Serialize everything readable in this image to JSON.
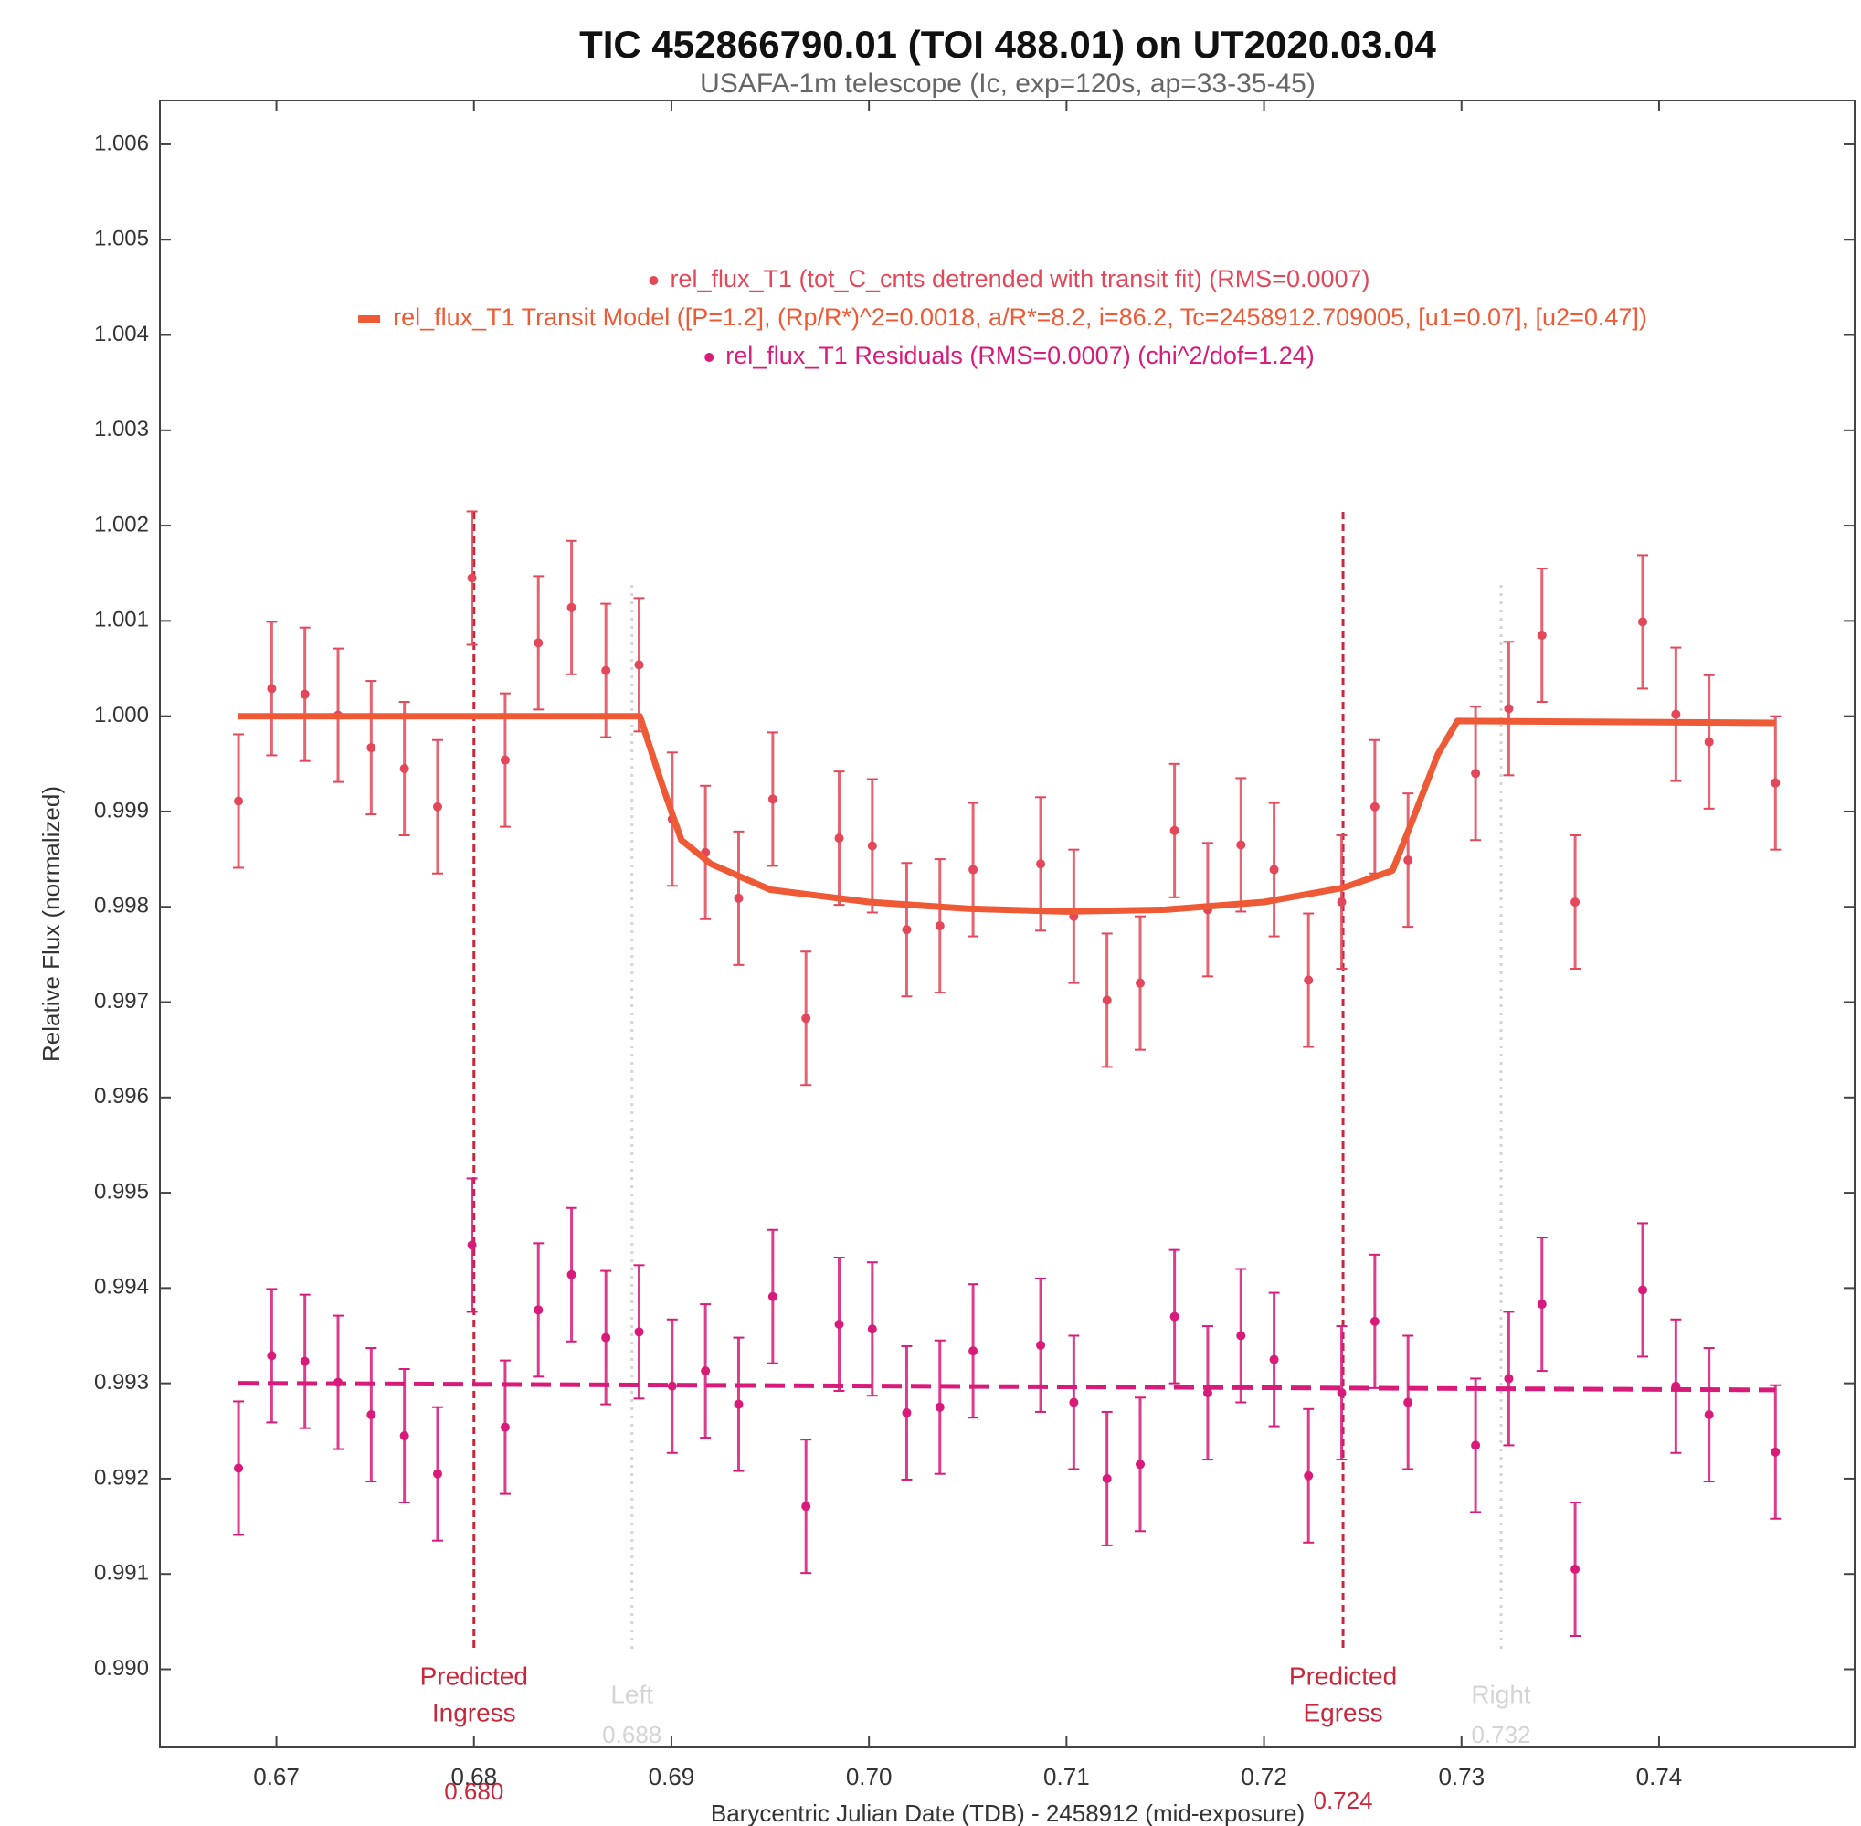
{
  "chart_data": {
    "type": "scatter",
    "title": "TIC 452866790.01 (TOI 488.01)  on UT2020.03.04",
    "subtitle": "USAFA-1m telescope (Ic, exp=120s, ap=33-35-45)",
    "x_label": "Barycentric Julian Date (TDB) - 2458912 (mid-exposure)",
    "y_label": "Relative Flux (normalized)",
    "xlim": [
      0.6641,
      0.7499
    ],
    "ylim": [
      0.98918,
      1.00646
    ],
    "xticks": [
      0.67,
      0.68,
      0.69,
      {
        "value": 0.7,
        "label": "0.70"
      },
      0.71,
      0.72,
      0.73,
      0.74
    ],
    "yticks": [
      {
        "value": 0.99,
        "label": "0.990"
      },
      0.991,
      0.992,
      0.993,
      0.994,
      0.995,
      0.996,
      0.997,
      0.998,
      0.999,
      {
        "value": 1.0,
        "label": "1.000"
      },
      1.001,
      1.002,
      1.003,
      1.004,
      1.005,
      1.006
    ],
    "grid": false,
    "legend": "top",
    "series": [
      {
        "name": "rel_flux_T1 (tot_C_cnts detrended with transit fit) (RMS=0.0007)",
        "type": "errorbar",
        "color": "#e2485a",
        "x": [
          0.66808,
          0.66976,
          0.67144,
          0.67312,
          0.6748,
          0.67648,
          0.67816,
          0.6799,
          0.68158,
          0.68326,
          0.68494,
          0.68668,
          0.68836,
          0.69004,
          0.69172,
          0.6934,
          0.69513,
          0.69681,
          0.69849,
          0.70017,
          0.70191,
          0.70359,
          0.70527,
          0.70869,
          0.71037,
          0.71205,
          0.71373,
          0.71547,
          0.71715,
          0.71883,
          0.72051,
          0.72225,
          0.72393,
          0.72561,
          0.72729,
          0.73071,
          0.73239,
          0.73407,
          0.73575,
          0.73917,
          0.74085,
          0.74253,
          0.74589
        ],
        "values": [
          0.99911,
          1.00029,
          1.00023,
          1.00001,
          0.99967,
          0.99945,
          0.99905,
          1.00145,
          0.99954,
          1.00077,
          1.00114,
          1.00048,
          1.00054,
          0.99892,
          0.99857,
          0.99809,
          0.99913,
          0.99683,
          0.99872,
          0.99864,
          0.99776,
          0.9978,
          0.99839,
          0.99845,
          0.9979,
          0.99702,
          0.9972,
          0.9988,
          0.99797,
          0.99865,
          0.99839,
          0.99723,
          0.99805,
          0.99905,
          0.99849,
          0.9994,
          1.00008,
          1.00085,
          0.99805,
          1.00099,
          1.00002,
          0.99973,
          0.9993
        ],
        "errors": [
          0.0007,
          0.0007,
          0.0007,
          0.0007,
          0.0007,
          0.0007,
          0.0007,
          0.0007,
          0.0007,
          0.0007,
          0.0007,
          0.0007,
          0.0007,
          0.0007,
          0.0007,
          0.0007,
          0.0007,
          0.0007,
          0.0007,
          0.0007,
          0.0007,
          0.0007,
          0.0007,
          0.0007,
          0.0007,
          0.0007,
          0.0007,
          0.0007,
          0.0007,
          0.0007,
          0.0007,
          0.0007,
          0.0007,
          0.0007,
          0.0007,
          0.0007,
          0.0007,
          0.0007,
          0.0007,
          0.0007,
          0.0007,
          0.0007,
          0.0007
        ]
      },
      {
        "name": "rel_flux_T1 Transit Model ([P=1.2], (Rp/R*)^2=0.0018, a/R*=8.2, i=86.2, Tc=2458912.709005, [u1=0.07], [u2=0.47])",
        "type": "line",
        "color": "#ee5a35",
        "x": [
          0.66808,
          0.6884,
          0.6895,
          0.6905,
          0.692,
          0.695,
          0.7,
          0.705,
          0.71,
          0.715,
          0.72,
          0.724,
          0.7265,
          0.7275,
          0.7288,
          0.7298,
          0.74589
        ],
        "values": [
          1.0,
          1.0,
          0.9993,
          0.9987,
          0.99845,
          0.99818,
          0.99805,
          0.99798,
          0.99795,
          0.99797,
          0.99805,
          0.9982,
          0.99838,
          0.9989,
          0.9996,
          0.99995,
          0.99993
        ]
      },
      {
        "name": "rel_flux_T1 Residuals (RMS=0.0007) (chi^2/dof=1.24)",
        "type": "errorbar",
        "color": "#d81b7a",
        "x": [
          0.66808,
          0.66976,
          0.67144,
          0.67312,
          0.6748,
          0.67648,
          0.67816,
          0.6799,
          0.68158,
          0.68326,
          0.68494,
          0.68668,
          0.68836,
          0.69004,
          0.69172,
          0.6934,
          0.69513,
          0.69681,
          0.69849,
          0.70017,
          0.70191,
          0.70359,
          0.70527,
          0.70869,
          0.71037,
          0.71205,
          0.71373,
          0.71547,
          0.71715,
          0.71883,
          0.72051,
          0.72225,
          0.72393,
          0.72561,
          0.72729,
          0.73071,
          0.73239,
          0.73407,
          0.73575,
          0.73917,
          0.74085,
          0.74253,
          0.74589
        ],
        "values": [
          0.99211,
          0.99329,
          0.99323,
          0.99301,
          0.99267,
          0.99245,
          0.99205,
          0.99445,
          0.99254,
          0.99377,
          0.99414,
          0.99348,
          0.99354,
          0.99297,
          0.99313,
          0.99278,
          0.99391,
          0.99171,
          0.99362,
          0.99357,
          0.99269,
          0.99275,
          0.99334,
          0.9934,
          0.9928,
          0.992,
          0.99215,
          0.9937,
          0.9929,
          0.9935,
          0.99325,
          0.99203,
          0.9929,
          0.99365,
          0.9928,
          0.99235,
          0.99305,
          0.99383,
          0.99105,
          0.99398,
          0.99297,
          0.99267,
          0.99228
        ],
        "errors": [
          0.0007,
          0.0007,
          0.0007,
          0.0007,
          0.0007,
          0.0007,
          0.0007,
          0.0007,
          0.0007,
          0.0007,
          0.0007,
          0.0007,
          0.0007,
          0.0007,
          0.0007,
          0.0007,
          0.0007,
          0.0007,
          0.0007,
          0.0007,
          0.0007,
          0.0007,
          0.0007,
          0.0007,
          0.0007,
          0.0007,
          0.0007,
          0.0007,
          0.0007,
          0.0007,
          0.0007,
          0.0007,
          0.0007,
          0.0007,
          0.0007,
          0.0007,
          0.0007,
          0.0007,
          0.0007,
          0.0007,
          0.0007,
          0.0007,
          0.0007
        ]
      },
      {
        "type": "line",
        "color": "#d81b7a",
        "dash": true,
        "x": [
          0.66808,
          0.74589
        ],
        "values": [
          0.993,
          0.99293
        ]
      }
    ],
    "vlines": [
      {
        "x": {
          "value": 0.68,
          "label": "0.680"
        },
        "label": [
          "Predicted",
          "Ingress"
        ],
        "color": "#c8283c",
        "style": "dashed"
      },
      {
        "x": {
          "value": 0.688,
          "label": "0.688"
        },
        "label": [
          "Left"
        ],
        "color": "#d4d4d4",
        "style": "dotted"
      },
      {
        "x": {
          "value": 0.724,
          "label": "0.724"
        },
        "label": [
          "Predicted",
          "Egress"
        ],
        "color": "#c8283c",
        "style": "dashed"
      },
      {
        "x": {
          "value": 0.732,
          "label": "0.732"
        },
        "label": [
          "Right"
        ],
        "color": "#d4d4d4",
        "style": "dotted"
      }
    ]
  }
}
